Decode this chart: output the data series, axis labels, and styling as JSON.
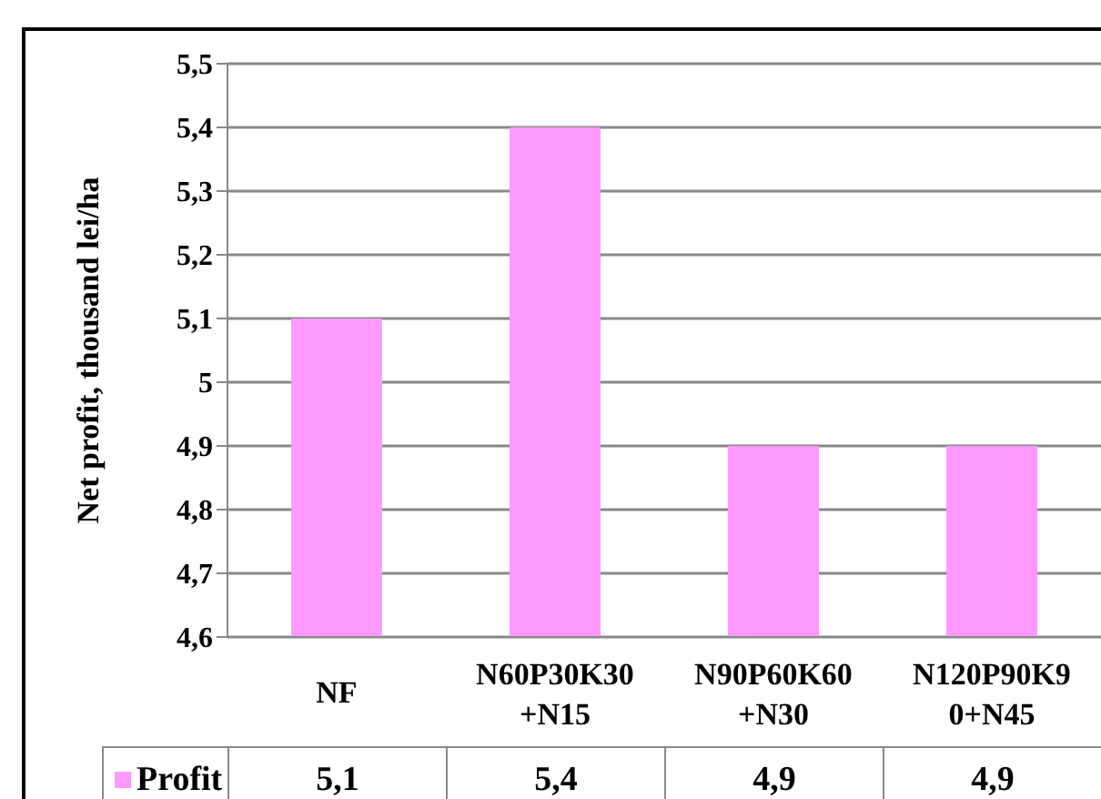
{
  "chart_data": {
    "type": "bar",
    "ylabel": "Net profit, thousand lei/ha",
    "categories": [
      "NF",
      "N60P30K30+N15",
      "N90P60K60+N30",
      "N120P90K90+N45"
    ],
    "series": [
      {
        "name": "Profit",
        "color": "#ff99ff",
        "values": [
          5.1,
          5.4,
          4.9,
          4.9
        ],
        "value_labels": [
          "5,1",
          "5,4",
          "4,9",
          "4,9"
        ]
      }
    ],
    "ylim": [
      4.6,
      5.5
    ],
    "yticks": [
      {
        "value": 4.6,
        "label": "4,6"
      },
      {
        "value": 4.7,
        "label": "4,7"
      },
      {
        "value": 4.8,
        "label": "4,8"
      },
      {
        "value": 4.9,
        "label": "4,9"
      },
      5,
      {
        "value": 5.1,
        "label": "5,1"
      },
      {
        "value": 5.2,
        "label": "5,2"
      },
      {
        "value": 5.3,
        "label": "5,3"
      },
      {
        "value": 5.4,
        "label": "5,4"
      },
      {
        "value": 5.5,
        "label": "5,5"
      }
    ],
    "grid": "y",
    "legend": "bottom left"
  }
}
